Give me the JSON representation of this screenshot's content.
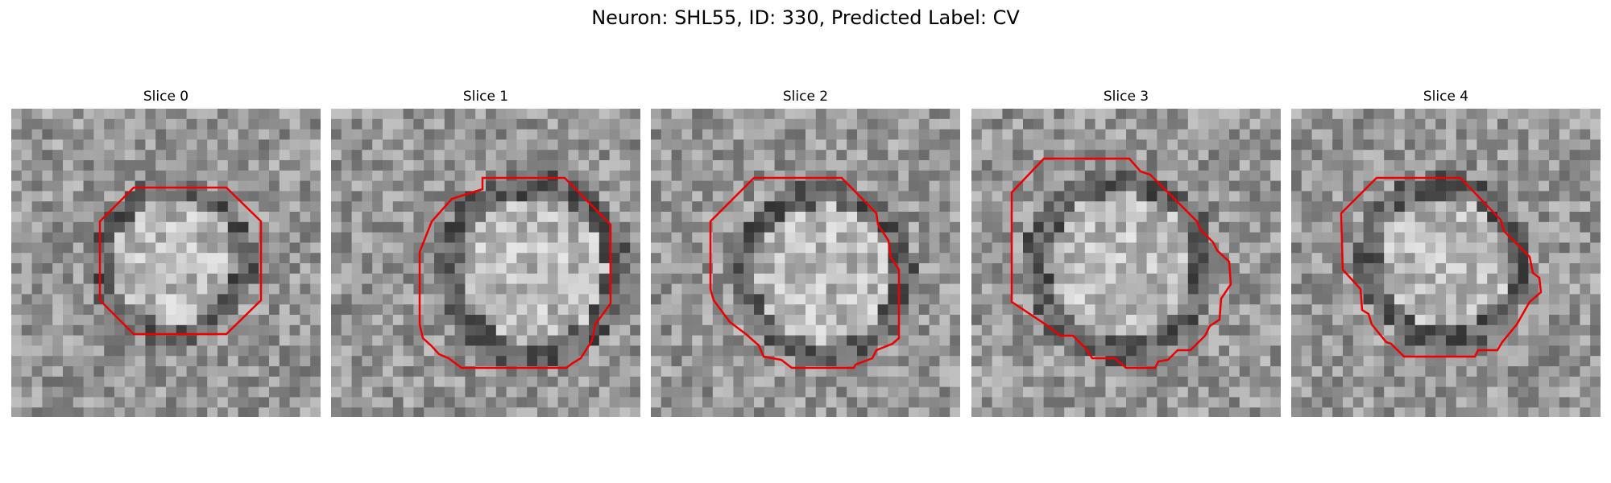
{
  "figure": {
    "title": "Neuron: SHL55, ID: 330, Predicted Label: CV",
    "outline_color": "#ee0000",
    "slices": [
      {
        "label": "Slice 0"
      },
      {
        "label": "Slice 1"
      },
      {
        "label": "Slice 2"
      },
      {
        "label": "Slice 3"
      },
      {
        "label": "Slice 4"
      }
    ]
  }
}
